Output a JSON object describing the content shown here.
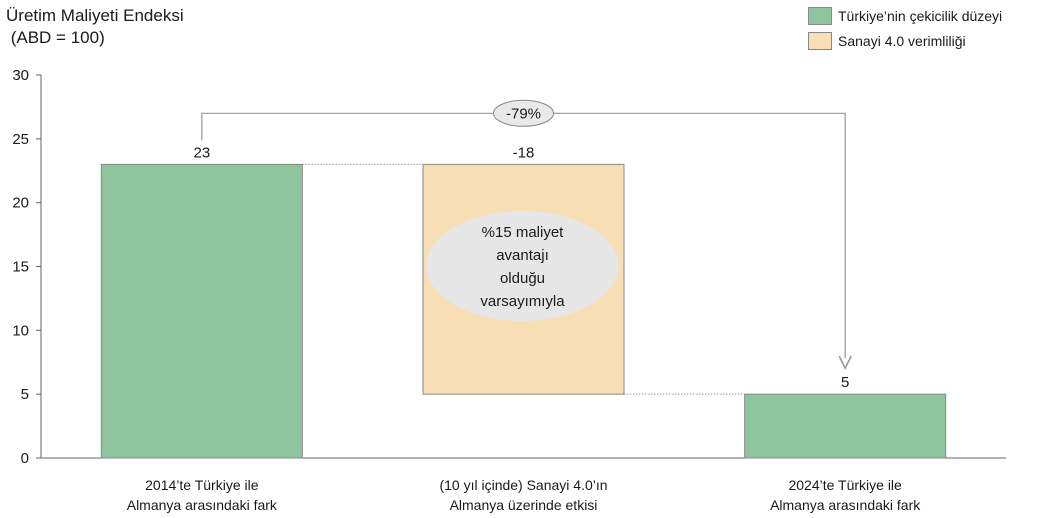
{
  "colors": {
    "green": "#8ec59f",
    "peach": "#f8deb4",
    "bar_border": "#888888",
    "axis": "#666666",
    "ellipse": "#e6e6e6"
  },
  "legend": [
    {
      "label": "Türkiye’nin çekicilik düzeyi",
      "color": "#8ec59f"
    },
    {
      "label": "Sanayi 4.0 verimliliği",
      "color": "#f8deb4"
    }
  ],
  "chart_data": {
    "type": "bar",
    "subtype": "waterfall",
    "title": "Üretim Maliyeti Endeksi",
    "subtitle": " (ABD = 100)",
    "ylim": [
      0,
      30
    ],
    "yticks": [
      "0",
      "5",
      "10",
      "15",
      "20",
      "25",
      "30"
    ],
    "bars": [
      {
        "category_lines": [
          "2014’te Türkiye ile",
          "Almanya arasındaki fark"
        ],
        "base": 0,
        "top": 23,
        "label": "23",
        "color_key": "green"
      },
      {
        "category_lines": [
          "(10 yıl içinde) Sanayi 4.0’ın",
          "Almanya üzerinde etkisi"
        ],
        "base": 5,
        "top": 23,
        "label": "-18",
        "color_key": "peach"
      },
      {
        "category_lines": [
          "2024’te Türkiye ile",
          "Almanya arasındaki fark"
        ],
        "base": 0,
        "top": 5,
        "label": "5",
        "color_key": "green"
      }
    ],
    "change_annotation": {
      "label": "-79%",
      "from_bar": 0,
      "to_bar": 2,
      "level": 27
    },
    "ellipse_annotation": {
      "lines": [
        "%15 maliyet",
        "avantajı",
        "olduğu",
        "varsayımıyla"
      ]
    },
    "grid": false
  }
}
